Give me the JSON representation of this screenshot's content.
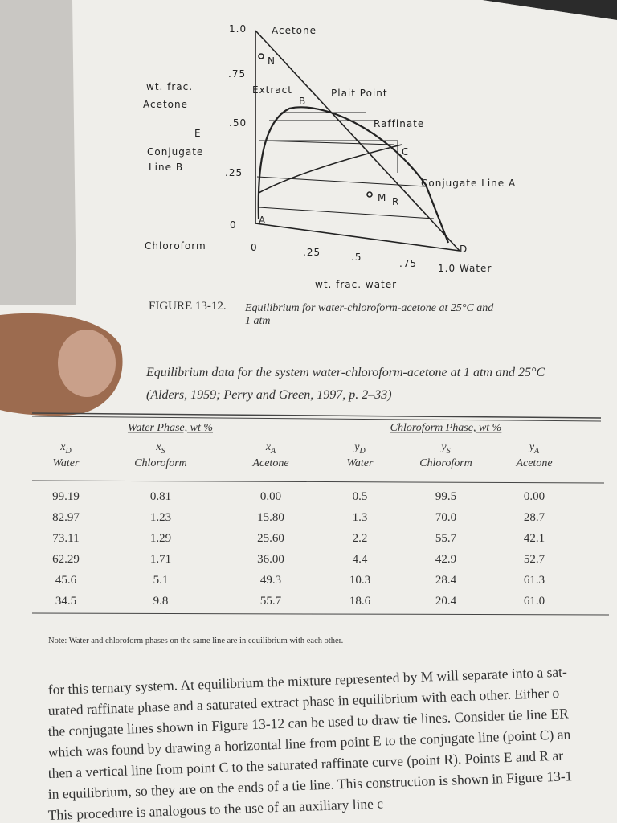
{
  "figure": {
    "labels": [
      "1.0",
      "Acetone",
      "N",
      ".75",
      "wt. frac.",
      "Acetone",
      "Extract",
      "Plait Point",
      "B",
      ".50",
      "Raffinate",
      "E",
      "Conjugate",
      "Line B",
      "C",
      ".25",
      "Conjugate Line A",
      "M",
      "R",
      "0",
      "A",
      "Chloroform",
      "0",
      ".25",
      ".5",
      ".75",
      "D",
      "1.0 Water",
      "wt. frac. water"
    ],
    "caption": {
      "number": "FIGURE 13-12.",
      "text": [
        "Equilibrium for water-chloroform-acetone at 25°C and",
        "1 atm"
      ]
    }
  },
  "table": {
    "title": [
      "Equilibrium data for the system water-chloroform-acetone at 1 atm and 25°C",
      "(Alders, 1959; Perry and Green, 1997, p. 2–33)"
    ],
    "groups": [
      "Water Phase, wt %",
      "Chloroform Phase, wt %"
    ],
    "columns": [
      {
        "symbol": "x",
        "sub": "D",
        "name": "Water"
      },
      {
        "symbol": "x",
        "sub": "S",
        "name": "Chloroform"
      },
      {
        "symbol": "x",
        "sub": "A",
        "name": "Acetone"
      },
      {
        "symbol": "y",
        "sub": "D",
        "name": "Water"
      },
      {
        "symbol": "y",
        "sub": "S",
        "name": "Chloroform"
      },
      {
        "symbol": "y",
        "sub": "A",
        "name": "Acetone"
      }
    ],
    "rows": [
      [
        "99.19",
        "0.81",
        "0.00",
        "0.5",
        "99.5",
        "0.00"
      ],
      [
        "82.97",
        "1.23",
        "15.80",
        "1.3",
        "70.0",
        "28.7"
      ],
      [
        "73.11",
        "1.29",
        "25.60",
        "2.2",
        "55.7",
        "42.1"
      ],
      [
        "62.29",
        "1.71",
        "36.00",
        "4.4",
        "42.9",
        "52.7"
      ],
      [
        "45.6",
        "5.1",
        "49.3",
        "10.3",
        "28.4",
        "61.3"
      ],
      [
        "34.5",
        "9.8",
        "55.7",
        "18.6",
        "20.4",
        "61.0"
      ]
    ],
    "note": "Note: Water and chloroform phases on the same line are in equilibrium with each other."
  },
  "body": [
    "for this ternary system. At equilibrium the mixture represented by M will separate into a sat-",
    "urated raffinate phase and a saturated extract phase in equilibrium with each other. Either o",
    "the conjugate lines shown in Figure 13-12 can be used to draw tie lines. Consider tie line ER",
    "which was found by drawing a horizontal line from point E to the conjugate line (point C) an",
    "then a vertical line from point C to the saturated raffinate curve (point R). Points E and R ar",
    "in equilibrium, so they are on the ends of a tie line. This construction is shown in Figure 13-1",
    "This procedure is analogous to the use of an auxiliary line c"
  ]
}
